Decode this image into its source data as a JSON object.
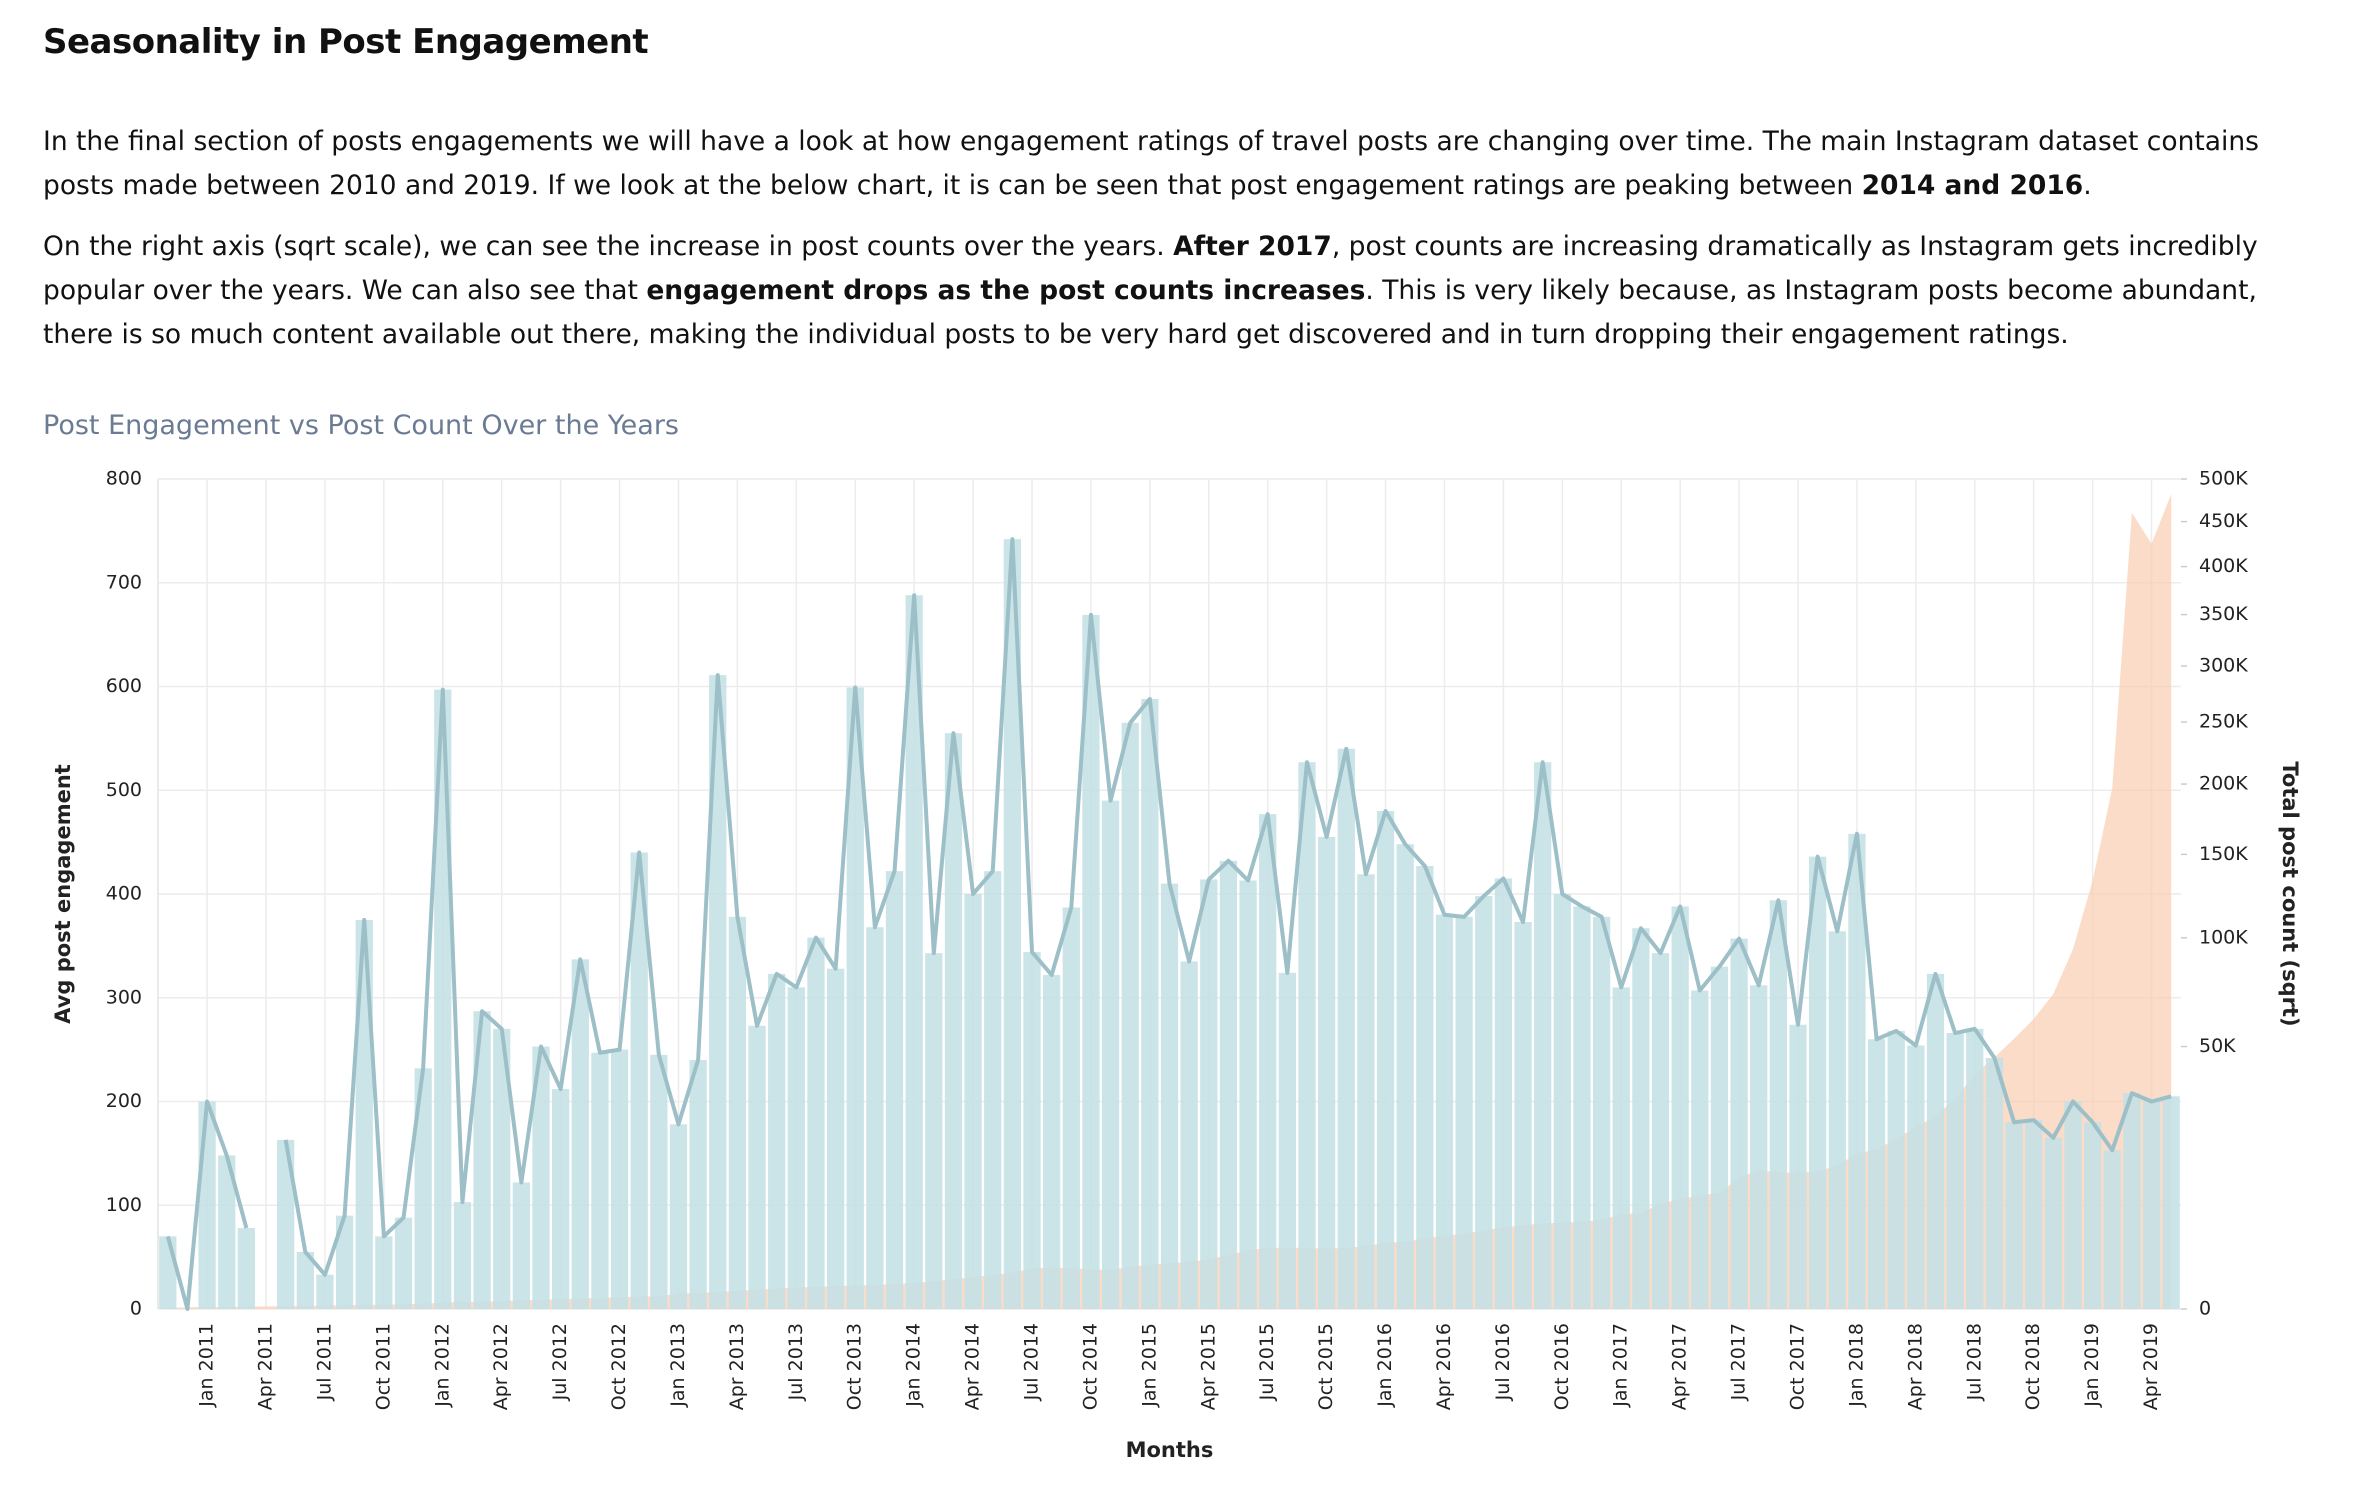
{
  "header": {
    "title": "Seasonality in Post Engagement"
  },
  "paragraphs": [
    [
      {
        "text": "In the final section of posts engagements we will have a look at how engagement ratings of travel posts are changing over time. The main Instagram dataset contains posts made between 2010 and 2019. If we look at the below chart, it is can be seen that post engagement ratings are peaking between "
      },
      {
        "text": "2014 and 2016",
        "strong": true
      },
      {
        "text": "."
      }
    ],
    [
      {
        "text": "On the right axis (sqrt scale), we can see the increase in post counts over the years. "
      },
      {
        "text": "After 2017",
        "strong": true
      },
      {
        "text": ", post counts are increasing dramatically as Instagram gets incredibly popular over the years. We can also see that "
      },
      {
        "text": "engagement drops as the post counts increases",
        "strong": true
      },
      {
        "text": ". This is very likely because, as Instagram posts become abundant, there is so much content available out there, making the individual posts to be very hard get discovered and in turn dropping their engagement ratings."
      }
    ]
  ],
  "chart_data": {
    "type": "bar",
    "title": "Post Engagement vs Post Count Over the Years",
    "xlabel": "Months",
    "ylabel": "Avg post engagement",
    "y2label": "Total post count (sqrt)",
    "categories": [
      null,
      null,
      "Jan 2011",
      null,
      null,
      "Apr 2011",
      null,
      null,
      "Jul 2011",
      null,
      null,
      "Oct 2011",
      null,
      null,
      "Jan 2012",
      null,
      null,
      "Apr 2012",
      null,
      null,
      "Jul 2012",
      null,
      null,
      "Oct 2012",
      null,
      null,
      "Jan 2013",
      null,
      null,
      "Apr 2013",
      null,
      null,
      "Jul 2013",
      null,
      null,
      "Oct 2013",
      null,
      null,
      "Jan 2014",
      null,
      null,
      "Apr 2014",
      null,
      null,
      "Jul 2014",
      null,
      null,
      "Oct 2014",
      null,
      null,
      "Jan 2015",
      null,
      null,
      "Apr 2015",
      null,
      null,
      "Jul 2015",
      null,
      null,
      "Oct 2015",
      null,
      null,
      "Jan 2016",
      null,
      null,
      "Apr 2016",
      null,
      null,
      "Jul 2016",
      null,
      null,
      "Oct 2016",
      null,
      null,
      "Jan 2017",
      null,
      null,
      "Apr 2017",
      null,
      null,
      "Jul 2017",
      null,
      null,
      "Oct 2017",
      null,
      null,
      "Jan 2018",
      null,
      null,
      "Apr 2018",
      null,
      null,
      "Jul 2018",
      null,
      null,
      "Oct 2018",
      null,
      null,
      "Jan 2019",
      null,
      null,
      "Apr 2019",
      null
    ],
    "series": [
      {
        "type": "bar",
        "line": true,
        "color": "#c3e0e5",
        "line_color": "#9dbfc7",
        "values": [
          70,
          0,
          200,
          148,
          78,
          null,
          163,
          55,
          33,
          90,
          375,
          70,
          88,
          232,
          597,
          103,
          287,
          270,
          122,
          253,
          212,
          337,
          247,
          250,
          440,
          245,
          178,
          240,
          611,
          378,
          273,
          323,
          310,
          358,
          328,
          599,
          368,
          422,
          688,
          343,
          555,
          400,
          422,
          742,
          344,
          322,
          387,
          669,
          490,
          565,
          588,
          410,
          335,
          414,
          432,
          413,
          477,
          324,
          527,
          455,
          540,
          419,
          480,
          448,
          427,
          380,
          378,
          398,
          415,
          373,
          527,
          400,
          388,
          378,
          310,
          367,
          343,
          388,
          307,
          330,
          357,
          312,
          394,
          274,
          436,
          364,
          458,
          260,
          268,
          254,
          323,
          266,
          270,
          242,
          180,
          182,
          165,
          200,
          180,
          153,
          208,
          200,
          205
        ]
      },
      {
        "type": "area",
        "axis": "y2",
        "color": "#f8cdb2",
        "values": [
          1,
          2,
          3,
          3,
          4,
          5,
          6,
          7,
          8,
          10,
          12,
          14,
          16,
          20,
          30,
          35,
          40,
          45,
          55,
          60,
          70,
          80,
          90,
          100,
          110,
          120,
          170,
          190,
          210,
          240,
          270,
          300,
          330,
          360,
          380,
          400,
          420,
          450,
          490,
          560,
          640,
          740,
          840,
          950,
          1200,
          1250,
          1200,
          1150,
          1100,
          1300,
          1430,
          1500,
          1600,
          1800,
          2100,
          2500,
          2700,
          2750,
          2700,
          2650,
          2700,
          2900,
          3150,
          3300,
          3600,
          3900,
          4100,
          4500,
          4800,
          5100,
          5300,
          5400,
          5500,
          5800,
          6500,
          6700,
          8000,
          8800,
          9300,
          9800,
          12500,
          14000,
          13500,
          13500,
          13700,
          15000,
          17500,
          18500,
          21000,
          24000,
          27000,
          32000,
          40000,
          46000,
          53000,
          61000,
          72000,
          94000,
          133000,
          197000,
          460000,
          425000,
          482000
        ]
      }
    ],
    "ylim": [
      0,
      800
    ],
    "yticks": [
      0,
      100,
      200,
      300,
      400,
      500,
      600,
      700,
      800
    ],
    "y2lim": [
      0,
      500000
    ],
    "y2scale": "sqrt",
    "y2ticks": [
      0,
      {
        "value": 50000,
        "label": "50K"
      },
      {
        "value": 100000,
        "label": "100K"
      },
      {
        "value": 150000,
        "label": "150K"
      },
      {
        "value": 200000,
        "label": "200K"
      },
      {
        "value": 250000,
        "label": "250K"
      },
      {
        "value": 300000,
        "label": "300K"
      },
      {
        "value": 350000,
        "label": "350K"
      },
      {
        "value": 400000,
        "label": "400K"
      },
      {
        "value": 450000,
        "label": "450K"
      },
      {
        "value": 500000,
        "label": "500K"
      }
    ],
    "grid": true
  }
}
